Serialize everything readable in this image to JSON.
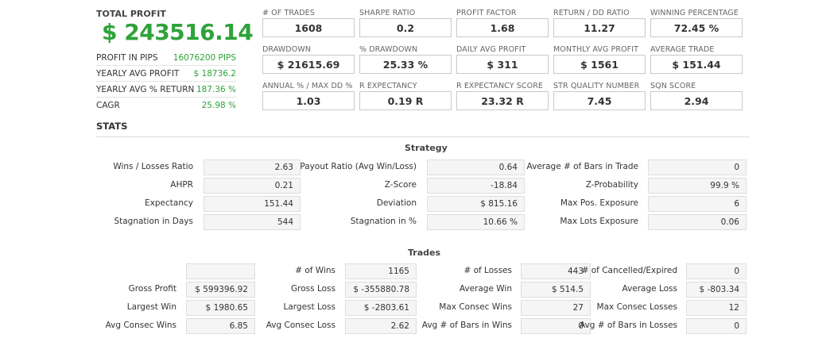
{
  "total_profit": {
    "label": "TOTAL PROFIT",
    "value": "$ 243516.14"
  },
  "summary": [
    {
      "label": "PROFIT IN PIPS",
      "value": "16076200 PIPS"
    },
    {
      "label": "YEARLY AVG PROFIT",
      "value": "$ 18736.2"
    },
    {
      "label": "YEARLY AVG % RETURN",
      "value": "187.36 %"
    },
    {
      "label": "CAGR",
      "value": "25.98 %"
    }
  ],
  "cards": [
    {
      "label": "# OF TRADES",
      "value": "1608"
    },
    {
      "label": "SHARPE RATIO",
      "value": "0.2"
    },
    {
      "label": "PROFIT FACTOR",
      "value": "1.68"
    },
    {
      "label": "RETURN / DD RATIO",
      "value": "11.27"
    },
    {
      "label": "WINNING PERCENTAGE",
      "value": "72.45 %"
    },
    {
      "label": "DRAWDOWN",
      "value": "$ 21615.69"
    },
    {
      "label": "% DRAWDOWN",
      "value": "25.33 %"
    },
    {
      "label": "DAILY AVG PROFIT",
      "value": "$ 311"
    },
    {
      "label": "MONTHLY AVG PROFIT",
      "value": "$ 1561"
    },
    {
      "label": "AVERAGE TRADE",
      "value": "$ 151.44"
    },
    {
      "label": "ANNUAL % / MAX DD %",
      "value": "1.03"
    },
    {
      "label": "R EXPECTANCY",
      "value": "0.19 R"
    },
    {
      "label": "R EXPECTANCY SCORE",
      "value": "23.32 R"
    },
    {
      "label": "STR QUALITY NUMBER",
      "value": "7.45"
    },
    {
      "label": "SQN SCORE",
      "value": "2.94"
    }
  ],
  "stats_title": "STATS",
  "strategy": {
    "title": "Strategy",
    "rows": [
      [
        {
          "label": "Wins / Losses Ratio",
          "value": "2.63"
        },
        {
          "label": "Payout Ratio (Avg Win/Loss)",
          "value": "0.64"
        },
        {
          "label": "Average # of Bars in Trade",
          "value": "0"
        }
      ],
      [
        {
          "label": "AHPR",
          "value": "0.21"
        },
        {
          "label": "Z-Score",
          "value": "-18.84"
        },
        {
          "label": "Z-Probability",
          "value": "99.9 %"
        }
      ],
      [
        {
          "label": "Expectancy",
          "value": "151.44"
        },
        {
          "label": "Deviation",
          "value": "$ 815.16"
        },
        {
          "label": "Max Pos. Exposure",
          "value": "6"
        }
      ],
      [
        {
          "label": "Stagnation in Days",
          "value": "544"
        },
        {
          "label": "Stagnation in %",
          "value": "10.66 %"
        },
        {
          "label": "Max Lots Exposure",
          "value": "0.06"
        }
      ]
    ]
  },
  "trades": {
    "title": "Trades",
    "rows": [
      [
        {
          "label": "",
          "value": ""
        },
        {
          "label": "# of Wins",
          "value": "1165"
        },
        {
          "label": "# of Losses",
          "value": "443"
        },
        {
          "label": "# of Cancelled/Expired",
          "value": "0"
        }
      ],
      [
        {
          "label": "Gross Profit",
          "value": "$ 599396.92"
        },
        {
          "label": "Gross Loss",
          "value": "$ -355880.78"
        },
        {
          "label": "Average Win",
          "value": "$ 514.5"
        },
        {
          "label": "Average Loss",
          "value": "$ -803.34"
        }
      ],
      [
        {
          "label": "Largest Win",
          "value": "$ 1980.65"
        },
        {
          "label": "Largest Loss",
          "value": "$ -2803.61"
        },
        {
          "label": "Max Consec Wins",
          "value": "27"
        },
        {
          "label": "Max Consec Losses",
          "value": "12"
        }
      ],
      [
        {
          "label": "Avg Consec Wins",
          "value": "6.85"
        },
        {
          "label": "Avg Consec Loss",
          "value": "2.62"
        },
        {
          "label": "Avg # of Bars in Wins",
          "value": "0"
        },
        {
          "label": "Avg # of Bars in Losses",
          "value": "0"
        }
      ]
    ]
  }
}
